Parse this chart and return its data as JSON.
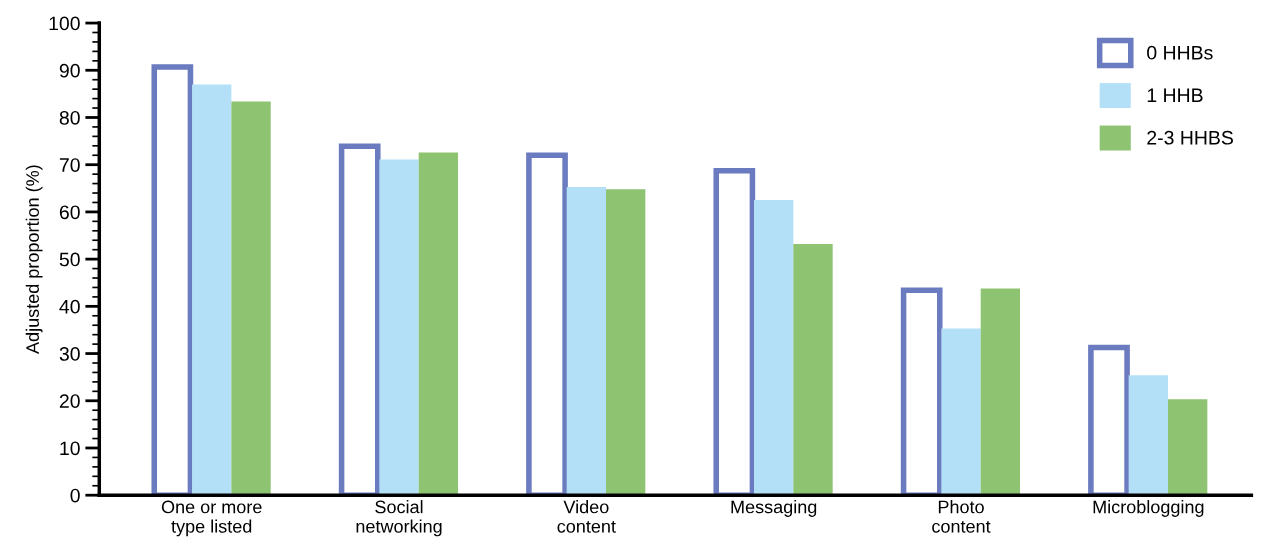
{
  "chart_data": {
    "type": "bar",
    "ylabel": "Adjusted proportion (%)",
    "categories": [
      "One or more\ntype listed",
      "Social\nnetworking",
      "Video\ncontent",
      "Messaging",
      "Photo\ncontent",
      "Microblogging"
    ],
    "series": [
      {
        "name": "0 HHBs",
        "color": "#6b7bbf",
        "values": [
          90.7,
          73.9,
          72.0,
          68.7,
          43.4,
          31.3
        ]
      },
      {
        "name": "1 HHB",
        "color": "#b3e0f7",
        "values": [
          87.0,
          71.1,
          65.3,
          62.5,
          35.3,
          25.4
        ]
      },
      {
        "name": "2-3 HHBS",
        "color": "#8ec372",
        "values": [
          83.4,
          72.6,
          64.8,
          53.2,
          43.8,
          20.3
        ]
      }
    ],
    "ylim": [
      0,
      100
    ],
    "yticks": [
      0,
      10,
      20,
      30,
      40,
      50,
      60,
      70,
      80,
      90,
      100
    ],
    "grid": false,
    "legend": "top right"
  }
}
